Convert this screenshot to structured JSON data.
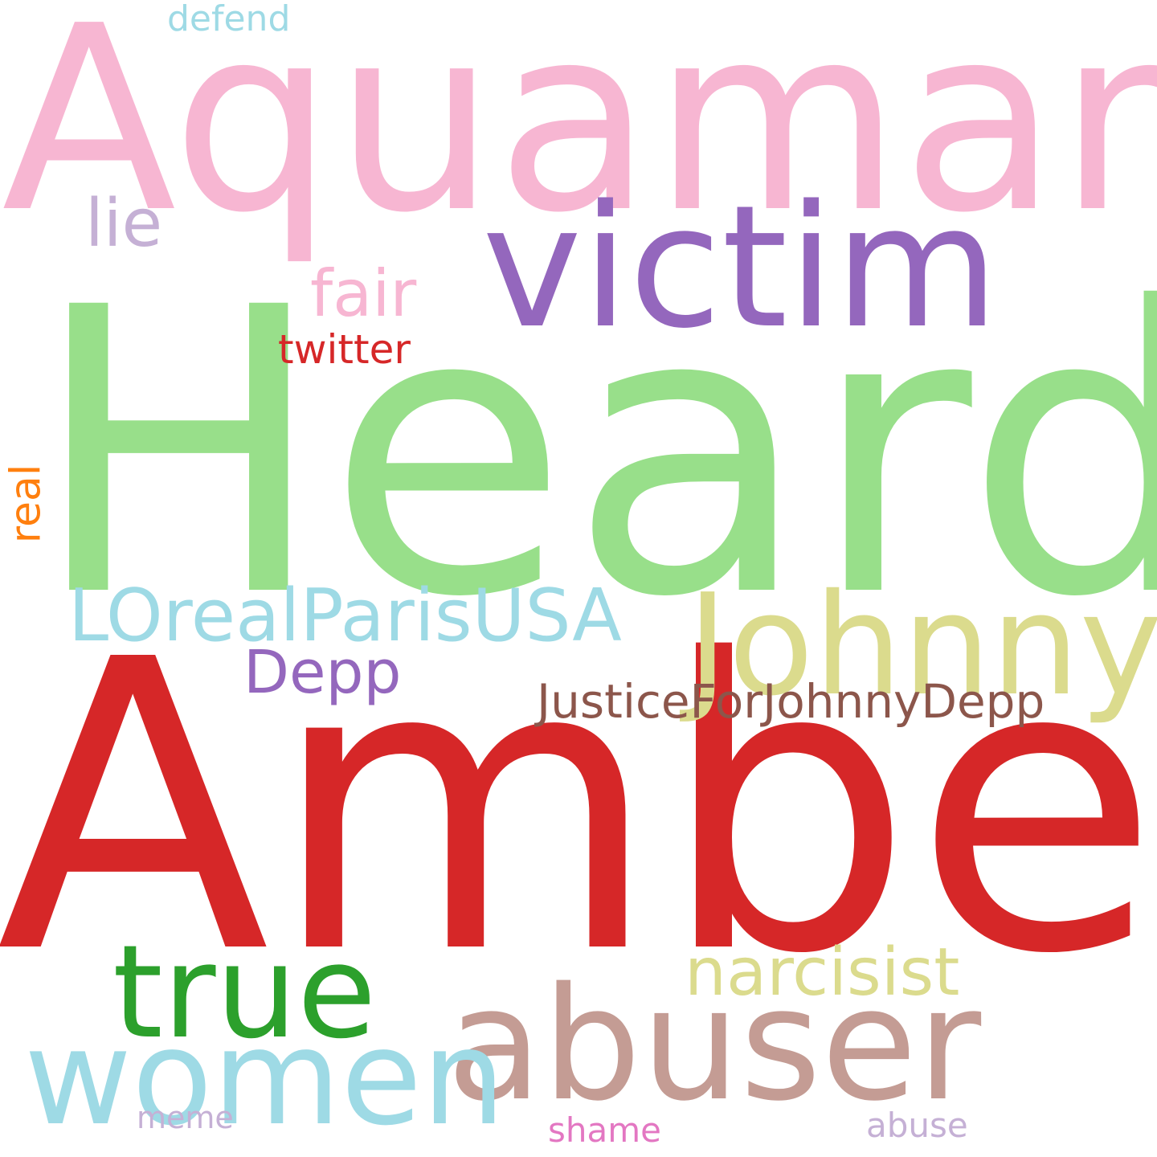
{
  "words": [
    {
      "text": "Aquaman",
      "color": "#f7b6d2"
    },
    {
      "text": "Heard",
      "color": "#98df8a"
    },
    {
      "text": "Amber",
      "color": "#d62728"
    },
    {
      "text": "victim",
      "color": "#9467bd"
    },
    {
      "text": "Johnny",
      "color": "#dbdb8d"
    },
    {
      "text": "abuser",
      "color": "#c49c94"
    },
    {
      "text": "women",
      "color": "#9edae5"
    },
    {
      "text": "true",
      "color": "#2ca02c"
    },
    {
      "text": "narcisist",
      "color": "#dbdb8d"
    },
    {
      "text": "LOrealParisUSA",
      "color": "#9edae5"
    },
    {
      "text": "Depp",
      "color": "#9467bd"
    },
    {
      "text": "JusticeForJohnnyDepp",
      "color": "#8c564b"
    },
    {
      "text": "fair",
      "color": "#f7b6d2"
    },
    {
      "text": "lie",
      "color": "#c5b0d5"
    },
    {
      "text": "twitter",
      "color": "#d62728"
    },
    {
      "text": "real",
      "color": "#ff7f0e"
    },
    {
      "text": "defend",
      "color": "#9edae5"
    },
    {
      "text": "meme",
      "color": "#c5b0d5"
    },
    {
      "text": "shame",
      "color": "#e377c2"
    },
    {
      "text": "abuse",
      "color": "#c5b0d5"
    }
  ]
}
